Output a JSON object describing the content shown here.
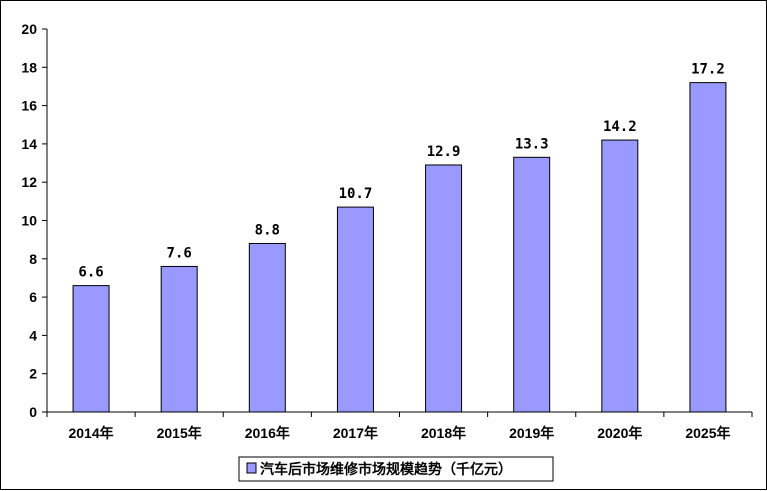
{
  "chart_data": {
    "type": "bar",
    "categories": [
      "2014年",
      "2015年",
      "2016年",
      "2017年",
      "2018年",
      "2019年",
      "2020年",
      "2025年"
    ],
    "series": [
      {
        "name": "汽车后市场维修市场规模趋势（千亿元）",
        "values": [
          6.6,
          7.6,
          8.8,
          10.7,
          12.9,
          13.3,
          14.2,
          17.2
        ],
        "labels": [
          "6.6",
          "7.6",
          "8.8",
          "10.7",
          "12.9",
          "13.3",
          "14.2",
          "17.2"
        ]
      }
    ],
    "ylim": [
      0,
      20
    ],
    "yticks": [
      0,
      2,
      4,
      6,
      8,
      10,
      12,
      14,
      16,
      18,
      20
    ],
    "grid": false,
    "legend_position": "bottom",
    "colors": {
      "bar_fill": "#9999ff",
      "bar_stroke": "#000000",
      "axis": "#000000"
    }
  }
}
